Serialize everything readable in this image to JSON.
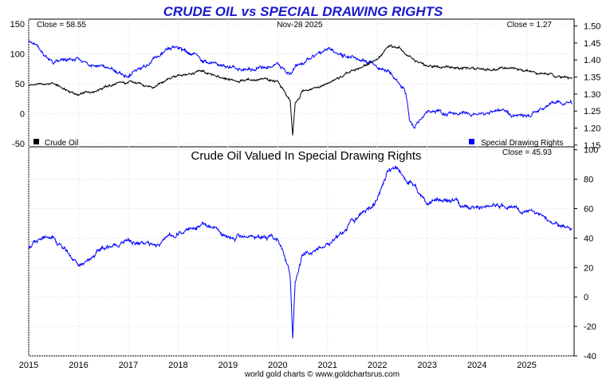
{
  "chart_data": [
    {
      "type": "line",
      "title": "CRUDE OIL vs SPECIAL DRAWING RIGHTS",
      "date_label": "Nov-28  2025",
      "x": [
        2015.0,
        2015.5,
        2016.0,
        2016.5,
        2017.0,
        2017.5,
        2018.0,
        2018.5,
        2019.0,
        2019.5,
        2020.0,
        2020.25,
        2020.3,
        2020.35,
        2020.5,
        2021.0,
        2021.5,
        2022.0,
        2022.2,
        2022.45,
        2022.55,
        2022.6,
        2022.65,
        2022.75,
        2023.0,
        2023.5,
        2024.0,
        2024.5,
        2025.0,
        2025.5,
        2025.91
      ],
      "x_ticks": [
        "2015",
        "2016",
        "2017",
        "2018",
        "2019",
        "2020",
        "2021",
        "2022",
        "2023",
        "2024",
        "2025"
      ],
      "left_axis": {
        "ylim": [
          -55,
          158
        ],
        "ticks": [
          150,
          100,
          50,
          0,
          -50
        ]
      },
      "right_axis": {
        "ylim": [
          1.145,
          1.52
        ],
        "ticks": [
          "1.50",
          "1.45",
          "1.40",
          "1.35",
          "1.30",
          "1.25",
          "1.20",
          "1.15"
        ]
      },
      "series": [
        {
          "name": "Crude Oil",
          "axis": "left",
          "color": "#000000",
          "close_label": "Close = 58.55",
          "values": [
            48,
            50,
            30,
            45,
            53,
            46,
            64,
            70,
            55,
            58,
            55,
            20,
            -37,
            15,
            38,
            50,
            70,
            90,
            115,
            110,
            100,
            98,
            95,
            90,
            78,
            80,
            73,
            78,
            72,
            65,
            58.55
          ]
        },
        {
          "name": "Special Drawing Rights",
          "axis": "right",
          "color": "#0000ff",
          "close_label": "Close = 1.27",
          "values": [
            1.46,
            1.39,
            1.4,
            1.38,
            1.35,
            1.4,
            1.44,
            1.4,
            1.38,
            1.37,
            1.39,
            1.36,
            1.37,
            1.38,
            1.39,
            1.43,
            1.41,
            1.38,
            1.37,
            1.33,
            1.31,
            1.28,
            1.22,
            1.2,
            1.25,
            1.24,
            1.24,
            1.25,
            1.23,
            1.28,
            1.27
          ]
        }
      ]
    },
    {
      "type": "line",
      "title": "Crude Oil Valued In Special Drawing Rights",
      "x": [
        2015.0,
        2015.5,
        2016.0,
        2016.5,
        2017.0,
        2017.5,
        2018.0,
        2018.5,
        2019.0,
        2019.5,
        2020.0,
        2020.25,
        2020.3,
        2020.35,
        2020.5,
        2021.0,
        2021.5,
        2022.0,
        2022.2,
        2022.45,
        2022.55,
        2022.6,
        2022.65,
        2022.75,
        2023.0,
        2023.5,
        2024.0,
        2024.5,
        2025.0,
        2025.5,
        2025.91
      ],
      "x_ticks": [
        "2015",
        "2016",
        "2017",
        "2018",
        "2019",
        "2020",
        "2021",
        "2022",
        "2023",
        "2024",
        "2025"
      ],
      "right_axis": {
        "ylim": [
          -40,
          102
        ],
        "ticks": [
          100,
          80,
          60,
          40,
          20,
          0,
          -20,
          -40
        ]
      },
      "series": [
        {
          "color": "#0000ff",
          "close_label": "Close = 45.93",
          "values": [
            35,
            40,
            22,
            33,
            38,
            34,
            44,
            50,
            40,
            42,
            40,
            15,
            -28,
            10,
            28,
            35,
            50,
            66,
            85,
            86,
            80,
            77,
            78,
            76,
            63,
            65,
            60,
            63,
            58,
            51,
            45.93
          ]
        }
      ]
    }
  ],
  "footer": "world gold charts © www.goldchartsrus.com"
}
